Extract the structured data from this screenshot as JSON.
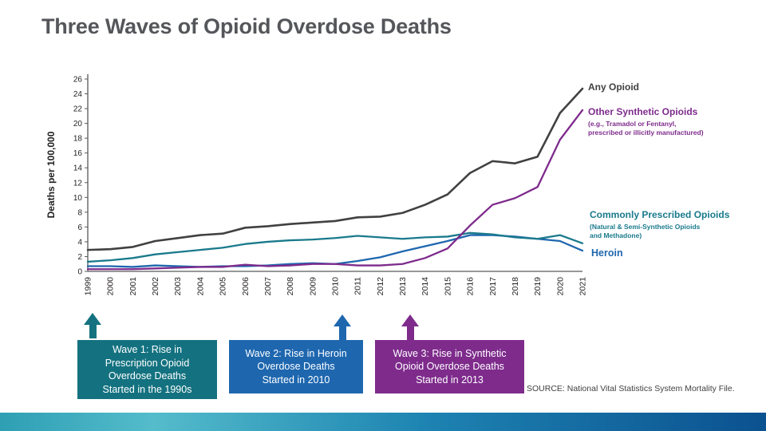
{
  "slide": {
    "title": "Three Waves of Opioid Overdose Deaths",
    "source": "SOURCE: National Vital Statistics System Mortality File."
  },
  "chart_data": {
    "type": "line",
    "title": "Three Waves of Opioid Overdose Deaths",
    "xlabel": "",
    "ylabel": "Deaths per 100,000",
    "ylim": [
      0,
      26
    ],
    "y_ticks": [
      0,
      2,
      4,
      6,
      8,
      10,
      12,
      14,
      16,
      18,
      20,
      22,
      24,
      26
    ],
    "grid": false,
    "legend_position": "right",
    "categories": [
      "1999",
      "2000",
      "2001",
      "2002",
      "2003",
      "2004",
      "2005",
      "2006",
      "2007",
      "2008",
      "2009",
      "2010",
      "2011",
      "2012",
      "2013",
      "2014",
      "2015",
      "2016",
      "2017",
      "2018",
      "2019",
      "2020",
      "2021"
    ],
    "series": [
      {
        "name": "Any Opioid",
        "color": "#414042",
        "values": [
          2.9,
          3.0,
          3.3,
          4.1,
          4.5,
          4.9,
          5.1,
          5.9,
          6.1,
          6.4,
          6.6,
          6.8,
          7.3,
          7.4,
          7.9,
          9.0,
          10.4,
          13.3,
          14.9,
          14.6,
          15.5,
          21.4,
          24.7
        ]
      },
      {
        "name": "Other Synthetic Opioids",
        "color": "#7E2B8C",
        "values": [
          0.3,
          0.3,
          0.3,
          0.4,
          0.5,
          0.6,
          0.6,
          0.9,
          0.7,
          0.8,
          1.0,
          1.0,
          0.8,
          0.8,
          1.0,
          1.8,
          3.1,
          6.2,
          9.0,
          9.9,
          11.4,
          17.8,
          21.8
        ]
      },
      {
        "name": "Commonly Prescribed Opioids",
        "color": "#1A7A8C",
        "values": [
          1.3,
          1.5,
          1.8,
          2.3,
          2.6,
          2.9,
          3.2,
          3.7,
          4.0,
          4.2,
          4.3,
          4.5,
          4.8,
          4.6,
          4.4,
          4.6,
          4.7,
          5.2,
          5.0,
          4.6,
          4.4,
          4.9,
          3.8
        ]
      },
      {
        "name": "Heroin",
        "color": "#1E67AF",
        "values": [
          0.7,
          0.7,
          0.6,
          0.8,
          0.7,
          0.6,
          0.7,
          0.7,
          0.8,
          1.0,
          1.1,
          1.0,
          1.4,
          1.9,
          2.7,
          3.4,
          4.1,
          4.9,
          4.9,
          4.7,
          4.4,
          4.1,
          2.8
        ]
      }
    ]
  },
  "legend": {
    "any_opioid": "Any Opioid",
    "synthetic_label": "Other Synthetic Opioids",
    "synthetic_sub": "(e.g., Tramadol or Fentanyl,\nprescribed or illicitly manufactured)",
    "prescribed_label": "Commonly Prescribed Opioids",
    "prescribed_sub": "(Natural & Semi-Synthetic Opioids\nand Methadone)",
    "heroin": "Heroin"
  },
  "waves": [
    {
      "text": "Wave 1: Rise in\nPrescription Opioid\nOverdose Deaths\nStarted in the 1990s",
      "color": "#147280"
    },
    {
      "text": "Wave 2: Rise in Heroin\nOverdose Deaths\nStarted in 2010",
      "color": "#1E67AF"
    },
    {
      "text": "Wave 3: Rise in Synthetic\nOpioid Overdose Deaths\nStarted in 2013",
      "color": "#7E2B8C"
    }
  ],
  "footer_gradient": [
    "#2E9FB4",
    "#54BCCB",
    "#1E84B2",
    "#0B5190"
  ]
}
